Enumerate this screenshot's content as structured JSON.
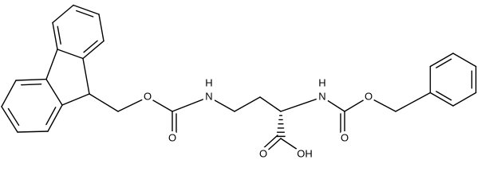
{
  "atoms": [
    {
      "label": "O"
    },
    {
      "label": "O"
    },
    {
      "label": "H"
    },
    {
      "label": "N"
    },
    {
      "label": "H"
    },
    {
      "label": "N"
    },
    {
      "label": "O"
    },
    {
      "label": "O"
    },
    {
      "label": "O"
    },
    {
      "label": "OH"
    }
  ]
}
